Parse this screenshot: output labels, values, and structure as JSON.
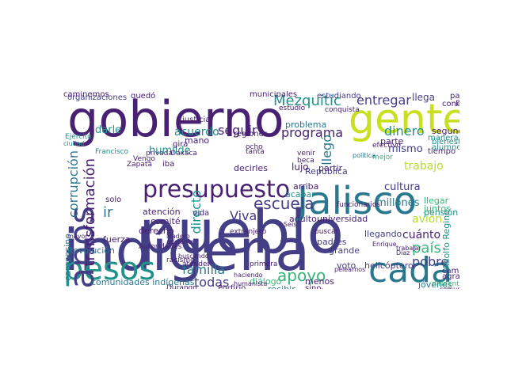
{
  "palette": {
    "dark_purple": "#482173",
    "deep_purple": "#3b0f70",
    "indigo": "#433e85",
    "blue": "#31688e",
    "teal": "#2a788e",
    "green_teal": "#21918c",
    "green": "#35b779",
    "lime": "#b5de2b",
    "yellow_green": "#c8e020"
  },
  "words": [
    {
      "text": "indígena",
      "color": "indigo",
      "vertical": false
    },
    {
      "text": "pueblo",
      "color": "indigo",
      "vertical": false
    },
    {
      "text": "gobierno",
      "color": "dark_purple",
      "vertical": false
    },
    {
      "text": "gente",
      "color": "yellow_green",
      "vertical": false
    },
    {
      "text": "Jalisco",
      "color": "teal",
      "vertical": false
    },
    {
      "text": "cada",
      "color": "teal",
      "vertical": false
    },
    {
      "text": "pesos",
      "color": "green_teal",
      "vertical": false
    },
    {
      "text": "presupuesto",
      "color": "dark_purple",
      "vertical": false
    },
    {
      "text": "años",
      "color": "indigo",
      "vertical": true
    },
    {
      "text": "Mezquitic",
      "color": "green_teal",
      "vertical": false
    },
    {
      "text": "entregar",
      "color": "indigo",
      "vertical": false
    },
    {
      "text": "escuela",
      "color": "indigo",
      "vertical": false
    },
    {
      "text": "apoyo",
      "color": "green",
      "vertical": false
    },
    {
      "text": "familia",
      "color": "teal",
      "vertical": false
    },
    {
      "text": "programa",
      "color": "dark_purple",
      "vertical": false
    },
    {
      "text": "acuerdo",
      "color": "green_teal",
      "vertical": false
    },
    {
      "text": "seguir",
      "color": "dark_purple",
      "vertical": false
    },
    {
      "text": "dinero",
      "color": "green_teal",
      "vertical": false
    },
    {
      "text": "trabajo",
      "color": "lime",
      "vertical": false
    },
    {
      "text": "mismo",
      "color": "indigo",
      "vertical": false
    },
    {
      "text": "cultura",
      "color": "indigo",
      "vertical": false
    },
    {
      "text": "millones",
      "color": "teal",
      "vertical": false
    },
    {
      "text": "avión",
      "color": "lime",
      "vertical": false
    },
    {
      "text": "país",
      "color": "green",
      "vertical": false
    },
    {
      "text": "cuánto",
      "color": "dark_purple",
      "vertical": false
    },
    {
      "text": "pobre",
      "color": "indigo",
      "vertical": false
    },
    {
      "text": "todas",
      "color": "indigo",
      "vertical": false
    },
    {
      "text": "Viva",
      "color": "indigo",
      "vertical": false
    },
    {
      "text": "ir",
      "color": "teal",
      "vertical": false
    },
    {
      "text": "directo",
      "color": "green_teal",
      "vertical": true
    },
    {
      "text": "llegó",
      "color": "teal",
      "vertical": true
    },
    {
      "text": "corrupción",
      "color": "teal",
      "vertical": true
    },
    {
      "text": "transformación",
      "color": "dark_purple",
      "vertical": true
    },
    {
      "text": "comunidades indígenas",
      "color": "teal",
      "vertical": false
    },
    {
      "text": "diálogo",
      "color": "green",
      "vertical": false
    },
    {
      "text": "atención",
      "color": "dark_purple",
      "vertical": false
    },
    {
      "text": "comité",
      "color": "dark_purple",
      "vertical": false
    },
    {
      "text": "derecho",
      "color": "dark_purple",
      "vertical": false
    },
    {
      "text": "fuerza",
      "color": "dark_purple",
      "vertical": false
    },
    {
      "text": "Revolución",
      "color": "teal",
      "vertical": false
    },
    {
      "text": "universidad",
      "color": "dark_purple",
      "vertical": false
    },
    {
      "text": "adulto",
      "color": "dark_purple",
      "vertical": false
    },
    {
      "text": "arriba",
      "color": "dark_purple",
      "vertical": false
    },
    {
      "text": "acabar",
      "color": "green_teal",
      "vertical": false
    },
    {
      "text": "República",
      "color": "indigo",
      "vertical": false
    },
    {
      "text": "helicóptero",
      "color": "indigo",
      "vertical": false
    },
    {
      "text": "padres",
      "color": "indigo",
      "vertical": false
    },
    {
      "text": "grande",
      "color": "indigo",
      "vertical": false
    },
    {
      "text": "voto",
      "color": "indigo",
      "vertical": false
    },
    {
      "text": "llegando",
      "color": "indigo",
      "vertical": false
    },
    {
      "text": "pensión",
      "color": "green_teal",
      "vertical": false
    },
    {
      "text": "segunda",
      "color": "dark_purple",
      "vertical": false
    },
    {
      "text": "tiempo",
      "color": "dark_purple",
      "vertical": false
    },
    {
      "text": "bienestar",
      "color": "green_teal",
      "vertical": false
    },
    {
      "text": "alumnos",
      "color": "green_teal",
      "vertical": false
    },
    {
      "text": "manera",
      "color": "green_teal",
      "vertical": false
    },
    {
      "text": "organizaciones",
      "color": "indigo",
      "vertical": false
    },
    {
      "text": "quedó",
      "color": "dark_purple",
      "vertical": false
    },
    {
      "text": "municipales",
      "color": "dark_purple",
      "vertical": false
    },
    {
      "text": "estudiando",
      "color": "indigo",
      "vertical": false
    },
    {
      "text": "llega",
      "color": "indigo",
      "vertical": false
    },
    {
      "text": "partido",
      "color": "dark_purple",
      "vertical": false
    },
    {
      "text": "primaria",
      "color": "dark_purple",
      "vertical": false
    },
    {
      "text": "conciliación",
      "color": "dark_purple",
      "vertical": false
    },
    {
      "text": "justicia",
      "color": "dark_purple",
      "vertical": false
    },
    {
      "text": "humilde",
      "color": "green_teal",
      "vertical": false
    },
    {
      "text": "darle",
      "color": "green_teal",
      "vertical": false
    },
    {
      "text": "mano",
      "color": "dark_purple",
      "vertical": false
    },
    {
      "text": "gira",
      "color": "dark_purple",
      "vertical": false
    },
    {
      "text": "regiones",
      "color": "dark_purple",
      "vertical": false
    },
    {
      "text": "problema",
      "color": "teal",
      "vertical": false
    },
    {
      "text": "lujo",
      "color": "dark_purple",
      "vertical": false
    },
    {
      "text": "partir",
      "color": "dark_purple",
      "vertical": false
    },
    {
      "text": "parte",
      "color": "dark_purple",
      "vertical": false
    },
    {
      "text": "decirles",
      "color": "dark_purple",
      "vertical": false
    },
    {
      "text": "llegar",
      "color": "green",
      "vertical": false
    },
    {
      "text": "juntos",
      "color": "green",
      "vertical": false
    },
    {
      "text": "camino",
      "color": "dark_purple",
      "vertical": false
    },
    {
      "text": "agrario",
      "color": "dark_purple",
      "vertical": false
    },
    {
      "text": "jóvenes",
      "color": "teal",
      "vertical": false
    },
    {
      "text": "recibir",
      "color": "teal",
      "vertical": false
    },
    {
      "text": "menos",
      "color": "dark_purple",
      "vertical": false
    },
    {
      "text": "sino",
      "color": "dark_purple",
      "vertical": false
    },
    {
      "text": "Porfirio",
      "color": "dark_purple",
      "vertical": false
    },
    {
      "text": "Durango",
      "color": "dark_purple",
      "vertical": false
    },
    {
      "text": "haciendo",
      "color": "dark_purple",
      "vertical": false
    },
    {
      "text": "Francisco",
      "color": "green_teal",
      "vertical": false
    },
    {
      "text": "Vengo",
      "color": "dark_purple",
      "vertical": false
    },
    {
      "text": "Zapata",
      "color": "dark_purple",
      "vertical": false
    },
    {
      "text": "privada",
      "color": "dark_purple",
      "vertical": false
    },
    {
      "text": "Oaxaca",
      "color": "dark_purple",
      "vertical": false
    },
    {
      "text": "iba",
      "color": "dark_purple",
      "vertical": false
    },
    {
      "text": "solo",
      "color": "dark_purple",
      "vertical": false
    },
    {
      "text": "vida",
      "color": "dark_purple",
      "vertical": false
    },
    {
      "text": "extranjero",
      "color": "dark_purple",
      "vertical": false
    },
    {
      "text": "Seis",
      "color": "dark_purple",
      "vertical": false
    },
    {
      "text": "buscar",
      "color": "dark_purple",
      "vertical": false
    },
    {
      "text": "funcionarios",
      "color": "dark_purple",
      "vertical": false
    },
    {
      "text": "Adolfo Regino",
      "color": "green_teal",
      "vertical": true
    },
    {
      "text": "campesino",
      "color": "teal",
      "vertical": true
    },
    {
      "text": "estudio",
      "color": "dark_purple",
      "vertical": false
    },
    {
      "text": "conquista",
      "color": "dark_purple",
      "vertical": false
    },
    {
      "text": "ocho",
      "color": "dark_purple",
      "vertical": false
    },
    {
      "text": "tanta",
      "color": "dark_purple",
      "vertical": false
    },
    {
      "text": "venir",
      "color": "dark_purple",
      "vertical": false
    },
    {
      "text": "beca",
      "color": "dark_purple",
      "vertical": false
    },
    {
      "text": "Ejército",
      "color": "green_teal",
      "vertical": false
    },
    {
      "text": "ciudad",
      "color": "green_teal",
      "vertical": false
    },
    {
      "text": "primera",
      "color": "dark_purple",
      "vertical": false
    },
    {
      "text": "cabo",
      "color": "dark_purple",
      "vertical": false
    },
    {
      "text": "dirigente",
      "color": "green",
      "vertical": false
    },
    {
      "text": "comunidad",
      "color": "dark_purple",
      "vertical": false
    },
    {
      "text": "mayor",
      "color": "dark_purple",
      "vertical": false
    },
    {
      "text": "racismo",
      "color": "dark_purple",
      "vertical": false
    },
    {
      "text": "Autoridades",
      "color": "dark_purple",
      "vertical": false
    },
    {
      "text": "atender",
      "color": "dark_purple",
      "vertical": false
    },
    {
      "text": "buscando",
      "color": "dark_purple",
      "vertical": false
    },
    {
      "text": "Madero",
      "color": "dark_purple",
      "vertical": false
    },
    {
      "text": "adelante",
      "color": "dark_purple",
      "vertical": false
    },
    {
      "text": "trabajar",
      "color": "dark_purple",
      "vertical": false
    },
    {
      "text": "Díaz",
      "color": "dark_purple",
      "vertical": false
    },
    {
      "text": "pelearnos",
      "color": "dark_purple",
      "vertical": false
    },
    {
      "text": "Enrique",
      "color": "dark_purple",
      "vertical": false
    },
    {
      "text": "efectivo",
      "color": "dark_purple",
      "vertical": false
    },
    {
      "text": "mejor",
      "color": "green",
      "vertical": false
    },
    {
      "text": "política",
      "color": "teal",
      "vertical": false
    },
    {
      "text": "humanista",
      "color": "dark_purple",
      "vertical": false
    },
    {
      "text": "caminemos",
      "color": "dark_purple",
      "vertical": false
    }
  ]
}
